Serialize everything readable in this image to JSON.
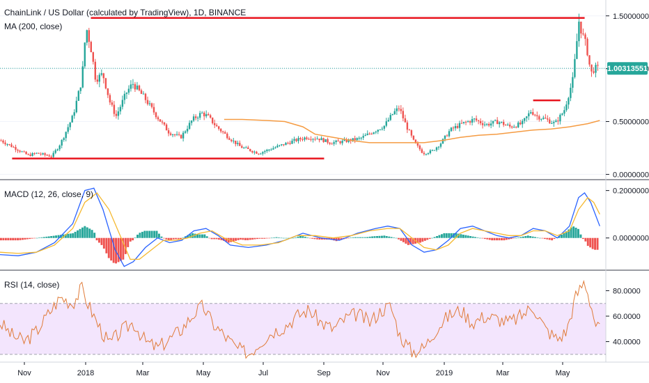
{
  "header": {
    "title": "ChainLink / US Dollar (calculated by TradingView), 1D, BINANCE",
    "ma_label": "MA (200, close)",
    "macd_label": "MACD (12, 26, close, 9)",
    "rsi_label": "RSI (14, close)",
    "price_badge": "1.00313551"
  },
  "colors": {
    "up": "#26a69a",
    "down": "#ef5350",
    "ma": "#f59b42",
    "macd": "#2962ff",
    "signal": "#f5b82e",
    "rsi": "#e07b39",
    "trend": "#e8141e",
    "price_line": "#26a69a",
    "rsi_band": "#f3e5fd"
  },
  "x_axis": {
    "ticks": [
      "Nov",
      "2018",
      "Mar",
      "May",
      "Jul",
      "Sep",
      "Nov",
      "2019",
      "Mar",
      "May"
    ]
  },
  "chart_data": [
    {
      "type": "candlestick",
      "title": "ChainLink / US Dollar (calculated by TradingView), 1D, BINANCE",
      "y_ticks": [
        "1.50000000",
        "1.00000000",
        "0.50000000",
        "0.00000000"
      ],
      "ylim": [
        -0.05,
        1.65
      ],
      "last_price": 1.00313551,
      "price_path": [
        [
          0,
          0.32
        ],
        [
          0.02,
          0.26
        ],
        [
          0.045,
          0.18
        ],
        [
          0.06,
          0.2
        ],
        [
          0.085,
          0.17
        ],
        [
          0.1,
          0.3
        ],
        [
          0.12,
          0.55
        ],
        [
          0.135,
          0.9
        ],
        [
          0.142,
          1.4
        ],
        [
          0.15,
          1.2
        ],
        [
          0.158,
          0.9
        ],
        [
          0.17,
          0.95
        ],
        [
          0.182,
          0.68
        ],
        [
          0.192,
          0.55
        ],
        [
          0.21,
          0.78
        ],
        [
          0.22,
          0.86
        ],
        [
          0.24,
          0.72
        ],
        [
          0.26,
          0.55
        ],
        [
          0.28,
          0.4
        ],
        [
          0.3,
          0.35
        ],
        [
          0.32,
          0.52
        ],
        [
          0.335,
          0.58
        ],
        [
          0.345,
          0.55
        ],
        [
          0.36,
          0.45
        ],
        [
          0.38,
          0.35
        ],
        [
          0.4,
          0.26
        ],
        [
          0.43,
          0.2
        ],
        [
          0.45,
          0.24
        ],
        [
          0.47,
          0.28
        ],
        [
          0.49,
          0.32
        ],
        [
          0.51,
          0.35
        ],
        [
          0.53,
          0.34
        ],
        [
          0.55,
          0.3
        ],
        [
          0.57,
          0.31
        ],
        [
          0.6,
          0.34
        ],
        [
          0.62,
          0.4
        ],
        [
          0.64,
          0.46
        ],
        [
          0.655,
          0.58
        ],
        [
          0.665,
          0.63
        ],
        [
          0.675,
          0.48
        ],
        [
          0.69,
          0.3
        ],
        [
          0.705,
          0.2
        ],
        [
          0.72,
          0.22
        ],
        [
          0.735,
          0.3
        ],
        [
          0.75,
          0.42
        ],
        [
          0.77,
          0.48
        ],
        [
          0.79,
          0.52
        ],
        [
          0.81,
          0.47
        ],
        [
          0.83,
          0.5
        ],
        [
          0.85,
          0.45
        ],
        [
          0.87,
          0.48
        ],
        [
          0.885,
          0.6
        ],
        [
          0.895,
          0.55
        ],
        [
          0.91,
          0.52
        ],
        [
          0.925,
          0.48
        ],
        [
          0.94,
          0.6
        ],
        [
          0.955,
          0.9
        ],
        [
          0.965,
          1.45
        ],
        [
          0.972,
          1.3
        ],
        [
          0.978,
          1.2
        ],
        [
          0.985,
          0.95
        ],
        [
          0.99,
          1.0
        ]
      ],
      "ma_path": [
        [
          0.37,
          0.52
        ],
        [
          0.4,
          0.52
        ],
        [
          0.44,
          0.51
        ],
        [
          0.47,
          0.5
        ],
        [
          0.5,
          0.45
        ],
        [
          0.52,
          0.38
        ],
        [
          0.55,
          0.35
        ],
        [
          0.58,
          0.32
        ],
        [
          0.61,
          0.3
        ],
        [
          0.64,
          0.3
        ],
        [
          0.67,
          0.3
        ],
        [
          0.7,
          0.3
        ],
        [
          0.73,
          0.32
        ],
        [
          0.76,
          0.35
        ],
        [
          0.79,
          0.37
        ],
        [
          0.82,
          0.38
        ],
        [
          0.85,
          0.4
        ],
        [
          0.88,
          0.42
        ],
        [
          0.91,
          0.43
        ],
        [
          0.94,
          0.45
        ],
        [
          0.97,
          0.48
        ],
        [
          0.99,
          0.51
        ]
      ],
      "trend_lines": [
        [
          [
            0.15,
            1.48
          ],
          [
            0.965,
            1.48
          ]
        ],
        [
          [
            0.02,
            0.15
          ],
          [
            0.535,
            0.15
          ]
        ],
        [
          [
            0.88,
            0.7
          ],
          [
            0.925,
            0.7
          ]
        ]
      ]
    },
    {
      "type": "line",
      "title": "MACD (12, 26, close, 9)",
      "y_ticks": [
        "0.20000000",
        "0.00000000"
      ],
      "ylim": [
        -0.13,
        0.24
      ],
      "series": [
        {
          "key": "macd",
          "points": [
            [
              0,
              -0.07
            ],
            [
              0.03,
              -0.075
            ],
            [
              0.06,
              -0.06
            ],
            [
              0.09,
              -0.02
            ],
            [
              0.12,
              0.06
            ],
            [
              0.14,
              0.2
            ],
            [
              0.155,
              0.21
            ],
            [
              0.17,
              0.12
            ],
            [
              0.19,
              -0.05
            ],
            [
              0.205,
              -0.12
            ],
            [
              0.22,
              -0.1
            ],
            [
              0.24,
              -0.04
            ],
            [
              0.26,
              0.0
            ],
            [
              0.28,
              -0.02
            ],
            [
              0.3,
              -0.01
            ],
            [
              0.32,
              0.03
            ],
            [
              0.34,
              0.04
            ],
            [
              0.36,
              0.01
            ],
            [
              0.38,
              -0.03
            ],
            [
              0.41,
              -0.04
            ],
            [
              0.44,
              -0.03
            ],
            [
              0.47,
              -0.01
            ],
            [
              0.5,
              0.02
            ],
            [
              0.53,
              0.0
            ],
            [
              0.56,
              -0.01
            ],
            [
              0.59,
              0.02
            ],
            [
              0.62,
              0.04
            ],
            [
              0.64,
              0.05
            ],
            [
              0.66,
              0.04
            ],
            [
              0.68,
              -0.03
            ],
            [
              0.7,
              -0.06
            ],
            [
              0.72,
              -0.05
            ],
            [
              0.74,
              -0.01
            ],
            [
              0.76,
              0.04
            ],
            [
              0.78,
              0.05
            ],
            [
              0.8,
              0.03
            ],
            [
              0.82,
              0.01
            ],
            [
              0.84,
              0.0
            ],
            [
              0.86,
              0.01
            ],
            [
              0.88,
              0.04
            ],
            [
              0.9,
              0.03
            ],
            [
              0.92,
              0.0
            ],
            [
              0.94,
              0.05
            ],
            [
              0.955,
              0.17
            ],
            [
              0.965,
              0.19
            ],
            [
              0.975,
              0.15
            ],
            [
              0.99,
              0.05
            ]
          ]
        },
        {
          "key": "signal",
          "points": [
            [
              0,
              -0.06
            ],
            [
              0.03,
              -0.065
            ],
            [
              0.06,
              -0.06
            ],
            [
              0.09,
              -0.03
            ],
            [
              0.12,
              0.04
            ],
            [
              0.14,
              0.15
            ],
            [
              0.16,
              0.19
            ],
            [
              0.18,
              0.12
            ],
            [
              0.2,
              0.0
            ],
            [
              0.215,
              -0.09
            ],
            [
              0.23,
              -0.09
            ],
            [
              0.25,
              -0.05
            ],
            [
              0.27,
              -0.01
            ],
            [
              0.29,
              -0.01
            ],
            [
              0.31,
              0.0
            ],
            [
              0.33,
              0.02
            ],
            [
              0.35,
              0.03
            ],
            [
              0.37,
              0.0
            ],
            [
              0.4,
              -0.03
            ],
            [
              0.43,
              -0.03
            ],
            [
              0.46,
              -0.02
            ],
            [
              0.49,
              0.01
            ],
            [
              0.52,
              0.01
            ],
            [
              0.55,
              0.0
            ],
            [
              0.58,
              0.01
            ],
            [
              0.61,
              0.03
            ],
            [
              0.64,
              0.04
            ],
            [
              0.66,
              0.04
            ],
            [
              0.68,
              0.0
            ],
            [
              0.7,
              -0.04
            ],
            [
              0.72,
              -0.05
            ],
            [
              0.74,
              -0.03
            ],
            [
              0.76,
              0.02
            ],
            [
              0.78,
              0.04
            ],
            [
              0.8,
              0.03
            ],
            [
              0.82,
              0.02
            ],
            [
              0.84,
              0.01
            ],
            [
              0.86,
              0.01
            ],
            [
              0.88,
              0.03
            ],
            [
              0.9,
              0.03
            ],
            [
              0.92,
              0.01
            ],
            [
              0.94,
              0.03
            ],
            [
              0.955,
              0.12
            ],
            [
              0.97,
              0.17
            ],
            [
              0.98,
              0.15
            ],
            [
              0.99,
              0.1
            ]
          ]
        }
      ]
    },
    {
      "type": "line",
      "title": "RSI (14, close)",
      "y_ticks": [
        "80.0000",
        "60.0000",
        "40.0000"
      ],
      "ylim": [
        25,
        95
      ],
      "bands": [
        30,
        70
      ],
      "points": [
        [
          0,
          55
        ],
        [
          0.02,
          45
        ],
        [
          0.04,
          40
        ],
        [
          0.06,
          48
        ],
        [
          0.08,
          62
        ],
        [
          0.1,
          75
        ],
        [
          0.12,
          70
        ],
        [
          0.135,
          82
        ],
        [
          0.145,
          70
        ],
        [
          0.16,
          55
        ],
        [
          0.18,
          38
        ],
        [
          0.2,
          48
        ],
        [
          0.22,
          55
        ],
        [
          0.24,
          40
        ],
        [
          0.26,
          35
        ],
        [
          0.28,
          42
        ],
        [
          0.3,
          50
        ],
        [
          0.32,
          62
        ],
        [
          0.335,
          68
        ],
        [
          0.35,
          55
        ],
        [
          0.37,
          45
        ],
        [
          0.39,
          35
        ],
        [
          0.41,
          30
        ],
        [
          0.43,
          40
        ],
        [
          0.45,
          48
        ],
        [
          0.47,
          52
        ],
        [
          0.49,
          60
        ],
        [
          0.51,
          65
        ],
        [
          0.53,
          55
        ],
        [
          0.55,
          50
        ],
        [
          0.57,
          58
        ],
        [
          0.59,
          62
        ],
        [
          0.61,
          55
        ],
        [
          0.63,
          65
        ],
        [
          0.645,
          68
        ],
        [
          0.66,
          45
        ],
        [
          0.68,
          32
        ],
        [
          0.7,
          35
        ],
        [
          0.72,
          50
        ],
        [
          0.74,
          60
        ],
        [
          0.76,
          65
        ],
        [
          0.78,
          55
        ],
        [
          0.8,
          60
        ],
        [
          0.82,
          58
        ],
        [
          0.84,
          55
        ],
        [
          0.86,
          60
        ],
        [
          0.88,
          68
        ],
        [
          0.9,
          50
        ],
        [
          0.92,
          42
        ],
        [
          0.935,
          48
        ],
        [
          0.95,
          75
        ],
        [
          0.965,
          88
        ],
        [
          0.975,
          70
        ],
        [
          0.985,
          50
        ],
        [
          0.99,
          52
        ]
      ]
    }
  ]
}
